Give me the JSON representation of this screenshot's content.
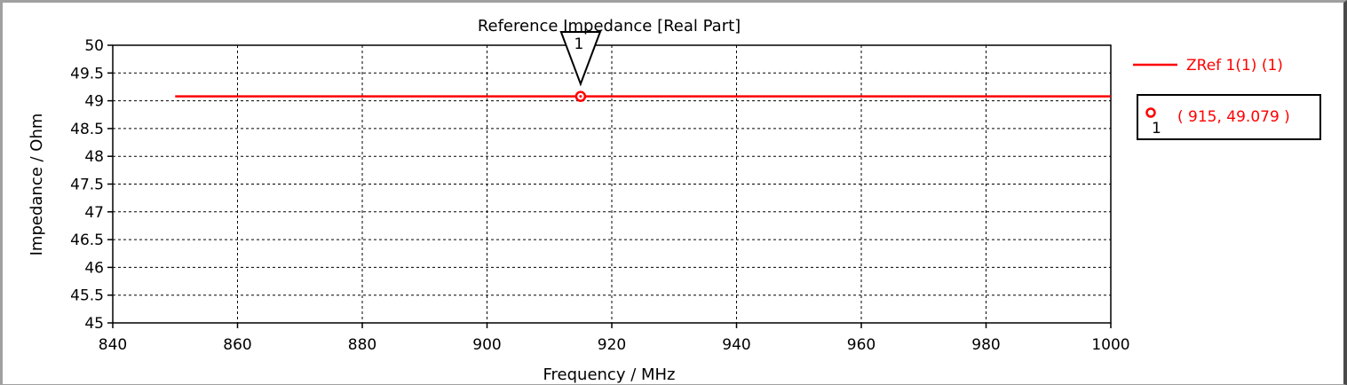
{
  "chart_data": {
    "type": "line",
    "title": "Reference Impedance [Real Part]",
    "xlabel": "Frequency / MHz",
    "ylabel": "Impedance / Ohm",
    "xlim": [
      840,
      1000
    ],
    "ylim": [
      45,
      50
    ],
    "x_ticks": [
      "840",
      "860",
      "880",
      "900",
      "920",
      "940",
      "960",
      "980",
      "1000"
    ],
    "y_ticks": [
      "45",
      "45.5",
      "46",
      "46.5",
      "47",
      "47.5",
      "48",
      "48.5",
      "49",
      "49.5",
      "50"
    ],
    "grid": true,
    "legend_position": "right",
    "series": [
      {
        "name": "ZRef 1(1) (1)",
        "color": "#ff0000",
        "x": [
          850,
          1000
        ],
        "y": [
          49.079,
          49.079
        ]
      }
    ],
    "markers": [
      {
        "id": "1",
        "x": 915,
        "y": 49.079,
        "readout": "( 915, 49.079 )"
      }
    ]
  }
}
